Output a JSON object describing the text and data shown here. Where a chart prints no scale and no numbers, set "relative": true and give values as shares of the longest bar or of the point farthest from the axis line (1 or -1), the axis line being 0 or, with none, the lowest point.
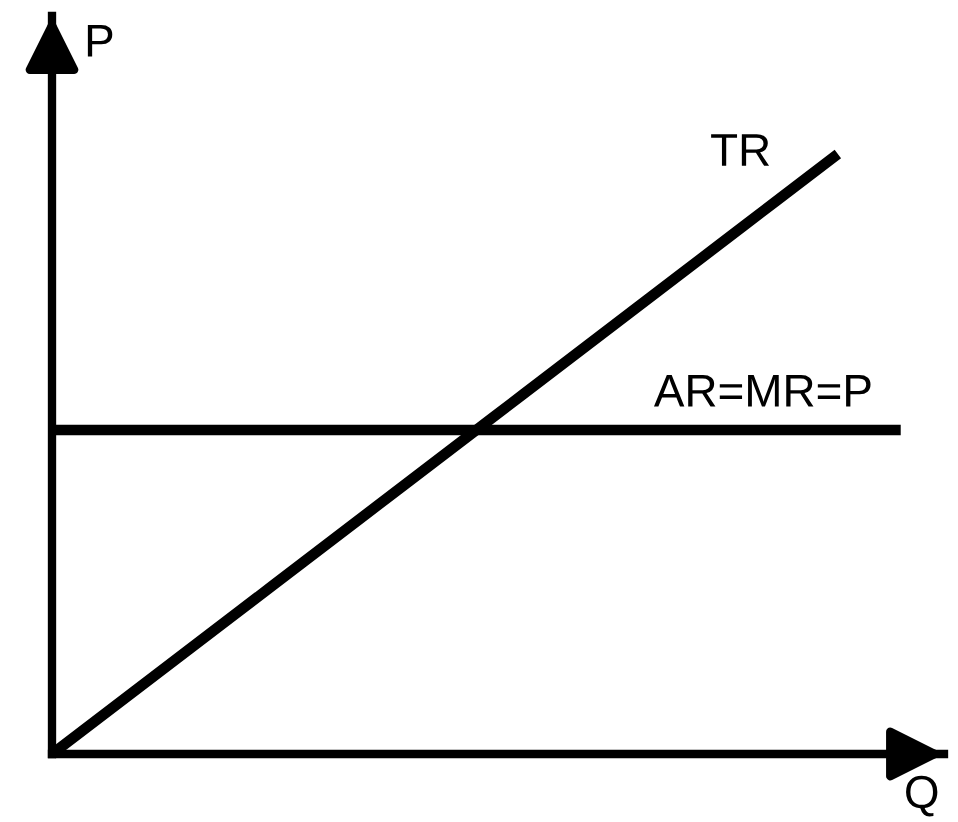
{
  "chart_data": {
    "type": "line",
    "relative": true,
    "xlabel": "Q",
    "ylabel": "P",
    "line_style": "solid",
    "categories": [
      null,
      null,
      null,
      null,
      null,
      null,
      null,
      null,
      null,
      null,
      null,
      null,
      null,
      null,
      null,
      null,
      null,
      null,
      null,
      null,
      null,
      null,
      null,
      null,
      null,
      null,
      null,
      null
    ],
    "series": [
      {
        "name": "TR",
        "color": "#000000",
        "values": [
          0,
          0.04,
          0.08,
          0.12,
          0.16,
          0.2,
          0.24,
          0.28,
          0.32,
          0.36,
          0.4,
          0.44,
          0.48,
          0.52,
          0.56,
          0.6,
          0.64,
          0.68,
          0.72,
          0.76,
          0.8,
          0.84,
          0.88,
          0.92,
          0.96,
          1,
          null,
          null
        ]
      },
      {
        "name": "AR=MR=P",
        "color": "#000000",
        "values": [
          0.54,
          0.54,
          0.54,
          0.54,
          0.54,
          0.54,
          0.54,
          0.54,
          0.54,
          0.54,
          0.54,
          0.54,
          0.54,
          0.54,
          0.54,
          0.54,
          0.54,
          0.54,
          0.54,
          0.54,
          0.54,
          0.54,
          0.54,
          0.54,
          0.54,
          0.54,
          0.54,
          0.54
        ]
      }
    ]
  }
}
